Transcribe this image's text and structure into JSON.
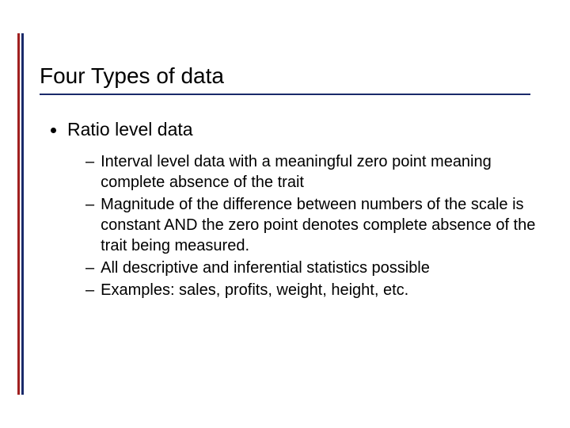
{
  "slide": {
    "title": "Four Types of data",
    "bullet1": {
      "text": "Ratio level data"
    },
    "sub_bullets": [
      "Interval level data with a meaningful zero point meaning complete absence of the trait",
      "Magnitude of the difference between numbers of the scale is constant AND the zero point denotes complete absence of the trait being measured.",
      "All descriptive and inferential statistics possible",
      "Examples: sales, profits, weight, height, etc."
    ],
    "colors": {
      "border_red": "#a02020",
      "border_blue": "#1a2a6a",
      "title_underline": "#1a2a6a",
      "text": "#000000",
      "background": "#ffffff"
    },
    "typography": {
      "title_fontsize": 28,
      "level1_fontsize": 23,
      "level2_fontsize": 20,
      "font_family": "Verdana"
    }
  }
}
